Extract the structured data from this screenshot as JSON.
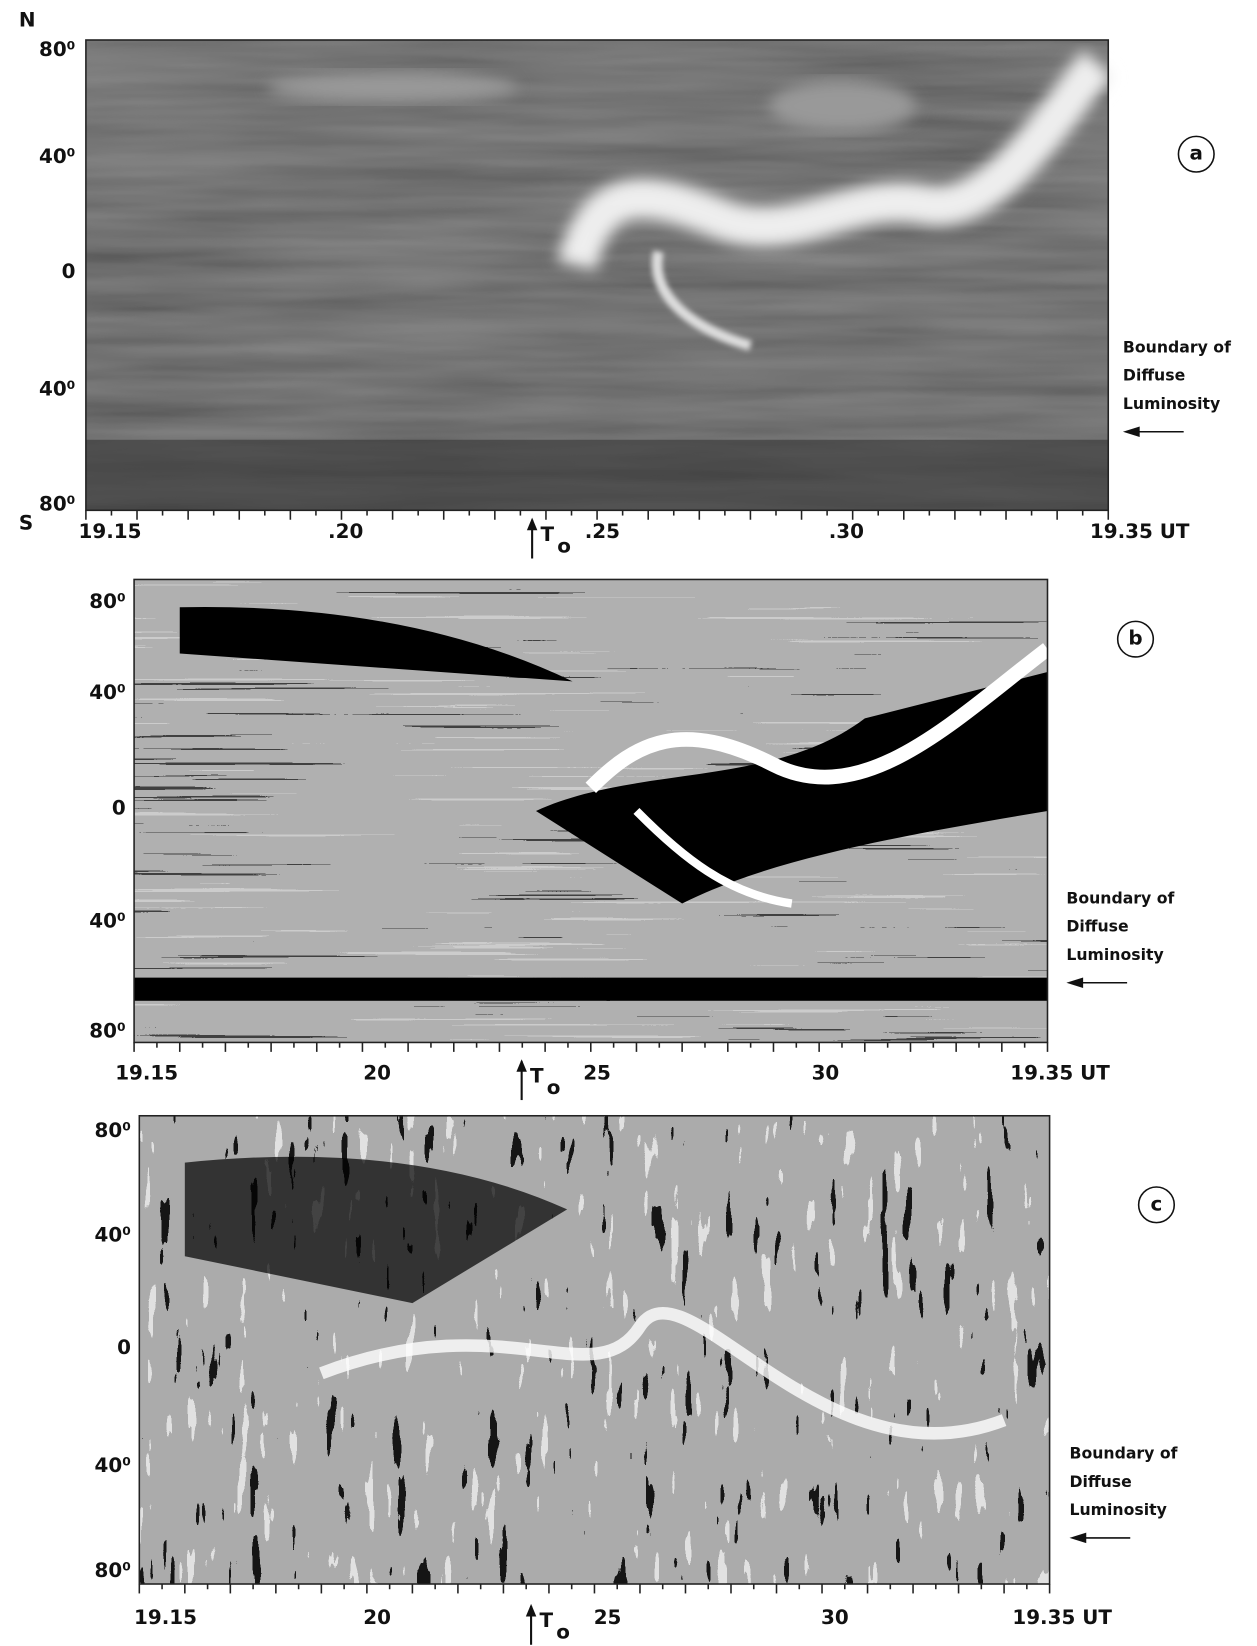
{
  "panels": [
    {
      "letter": "a",
      "north": "N",
      "south": "S",
      "y_labels": [
        "80⁰",
        "40⁰",
        "0",
        "40⁰",
        "80⁰"
      ],
      "x_labels": [
        "19.15",
        ".20",
        ".25",
        ".30",
        "19.35 UT"
      ],
      "marker": {
        "text": "T",
        "subscript": "o"
      },
      "annotation": [
        "Boundary of",
        "Diffuse",
        "Luminosity"
      ]
    },
    {
      "letter": "b",
      "y_labels": [
        "80⁰",
        "40⁰",
        "0",
        "40⁰",
        "80⁰"
      ],
      "x_labels": [
        "19.15",
        "20",
        "25",
        "30",
        "19.35 UT"
      ],
      "marker": {
        "text": "T",
        "subscript": "o"
      },
      "annotation": [
        "Boundary of",
        "Diffuse",
        "Luminosity"
      ]
    },
    {
      "letter": "c",
      "y_labels": [
        "80⁰",
        "40⁰",
        "0",
        "40⁰",
        "80⁰"
      ],
      "x_labels": [
        "19.15",
        "20",
        "25",
        "30",
        "19.35 UT"
      ],
      "marker": {
        "text": "T",
        "subscript": "o"
      },
      "annotation": [
        "Boundary of",
        "Diffuse",
        "Luminosity"
      ]
    }
  ]
}
